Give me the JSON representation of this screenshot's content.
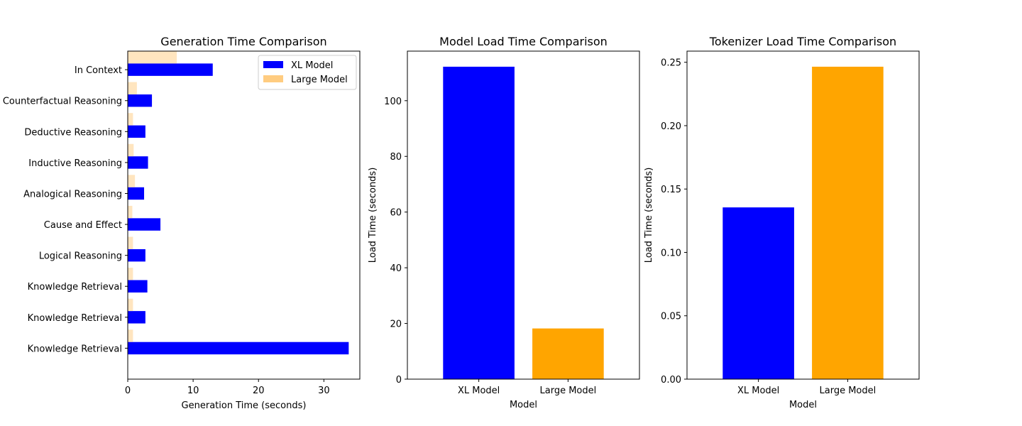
{
  "chart_data": [
    {
      "type": "bar",
      "orientation": "horizontal",
      "title": "Generation Time Comparison",
      "xlabel": "Generation Time (seconds)",
      "ylabel": "",
      "categories": [
        "Knowledge Retrieval",
        "Knowledge Retrieval",
        "Knowledge Retrieval",
        "Logical Reasoning",
        "Cause and Effect",
        "Analogical Reasoning",
        "Inductive Reasoning",
        "Deductive Reasoning",
        "Counterfactual Reasoning",
        "In Context"
      ],
      "series": [
        {
          "name": "XL Model",
          "color": "#0000ff",
          "values": [
            33.8,
            2.7,
            3.0,
            2.7,
            5.0,
            2.5,
            3.1,
            2.7,
            3.7,
            13.0
          ]
        },
        {
          "name": "Large Model",
          "color": "#ffcc80",
          "values": [
            0.8,
            0.8,
            0.8,
            0.8,
            0.7,
            1.1,
            0.9,
            0.8,
            1.4,
            7.5
          ]
        }
      ],
      "xlim": [
        0,
        35.5
      ],
      "xticks": [
        0,
        10,
        20,
        30
      ],
      "legend": "top-right",
      "grid": false
    },
    {
      "type": "bar",
      "title": "Model Load Time Comparison",
      "xlabel": "Model",
      "ylabel": "Load Time (seconds)",
      "categories": [
        "XL Model",
        "Large Model"
      ],
      "values": [
        112.2,
        18.2
      ],
      "colors": [
        "#0000ff",
        "#ffa500"
      ],
      "ylim": [
        0,
        117.8
      ],
      "yticks": [
        0,
        20,
        40,
        60,
        80,
        100
      ],
      "grid": false
    },
    {
      "type": "bar",
      "title": "Tokenizer Load Time Comparison",
      "xlabel": "Model",
      "ylabel": "Load Time (seconds)",
      "categories": [
        "XL Model",
        "Large Model"
      ],
      "values": [
        0.1355,
        0.2465
      ],
      "colors": [
        "#0000ff",
        "#ffa500"
      ],
      "ylim": [
        0,
        0.2588
      ],
      "yticks": [
        0.0,
        0.05,
        0.1,
        0.15,
        0.2,
        0.25
      ],
      "tick_decimals": 2,
      "grid": false
    }
  ]
}
